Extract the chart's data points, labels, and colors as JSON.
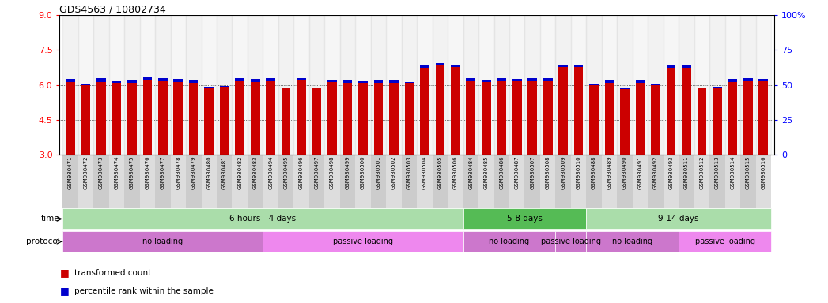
{
  "title": "GDS4563 / 10802734",
  "samples": [
    "GSM930471",
    "GSM930472",
    "GSM930473",
    "GSM930474",
    "GSM930475",
    "GSM930476",
    "GSM930477",
    "GSM930478",
    "GSM930479",
    "GSM930480",
    "GSM930481",
    "GSM930482",
    "GSM930483",
    "GSM930494",
    "GSM930495",
    "GSM930496",
    "GSM930497",
    "GSM930498",
    "GSM930499",
    "GSM930500",
    "GSM930501",
    "GSM930502",
    "GSM930503",
    "GSM930504",
    "GSM930505",
    "GSM930506",
    "GSM930484",
    "GSM930485",
    "GSM930486",
    "GSM930487",
    "GSM930507",
    "GSM930508",
    "GSM930509",
    "GSM930510",
    "GSM930488",
    "GSM930489",
    "GSM930490",
    "GSM930491",
    "GSM930492",
    "GSM930493",
    "GSM930511",
    "GSM930512",
    "GSM930513",
    "GSM930514",
    "GSM930515",
    "GSM930516"
  ],
  "red_values": [
    6.12,
    6.0,
    6.13,
    6.08,
    6.1,
    6.22,
    6.15,
    6.12,
    6.1,
    5.85,
    5.92,
    6.15,
    6.13,
    6.15,
    5.85,
    6.18,
    5.85,
    6.12,
    6.08,
    6.08,
    6.1,
    6.1,
    6.08,
    6.72,
    6.85,
    6.78,
    6.15,
    6.12,
    6.15,
    6.15,
    6.15,
    6.15,
    6.78,
    6.75,
    6.0,
    6.1,
    5.8,
    6.1,
    6.0,
    6.72,
    6.72,
    5.85,
    5.88,
    6.12,
    6.15,
    6.15
  ],
  "blue_values": [
    6.25,
    6.05,
    6.28,
    6.15,
    6.22,
    6.32,
    6.28,
    6.25,
    6.18,
    5.92,
    5.95,
    6.28,
    6.25,
    6.28,
    5.88,
    6.3,
    5.88,
    6.22,
    6.18,
    6.15,
    6.18,
    6.18,
    6.12,
    6.85,
    6.95,
    6.88,
    6.28,
    6.22,
    6.28,
    6.25,
    6.28,
    6.28,
    6.88,
    6.85,
    6.05,
    6.18,
    5.85,
    6.18,
    6.05,
    6.82,
    6.82,
    5.88,
    5.92,
    6.25,
    6.28,
    6.25
  ],
  "ylim_left": [
    3,
    9
  ],
  "yticks_left": [
    3,
    4.5,
    6,
    7.5,
    9
  ],
  "yticks_right": [
    0,
    25,
    50,
    75,
    100
  ],
  "dotted_yticks": [
    4.5,
    6.0,
    7.5
  ],
  "bar_color_red": "#cc0000",
  "bar_color_blue": "#0000cc",
  "time_groups": [
    {
      "label": "6 hours - 4 days",
      "start": 0,
      "end": 26,
      "color": "#aaddaa"
    },
    {
      "label": "5-8 days",
      "start": 26,
      "end": 34,
      "color": "#55bb55"
    },
    {
      "label": "9-14 days",
      "start": 34,
      "end": 46,
      "color": "#aaddaa"
    }
  ],
  "protocol_groups": [
    {
      "label": "no loading",
      "start": 0,
      "end": 13,
      "color": "#cc77cc"
    },
    {
      "label": "passive loading",
      "start": 13,
      "end": 26,
      "color": "#ee88ee"
    },
    {
      "label": "no loading",
      "start": 26,
      "end": 32,
      "color": "#cc77cc"
    },
    {
      "label": "passive loading",
      "start": 32,
      "end": 34,
      "color": "#cc77cc"
    },
    {
      "label": "no loading",
      "start": 34,
      "end": 40,
      "color": "#cc77cc"
    },
    {
      "label": "passive loading",
      "start": 40,
      "end": 46,
      "color": "#ee88ee"
    }
  ],
  "legend_items": [
    {
      "label": "transformed count",
      "color": "#cc0000"
    },
    {
      "label": "percentile rank within the sample",
      "color": "#0000cc"
    }
  ]
}
